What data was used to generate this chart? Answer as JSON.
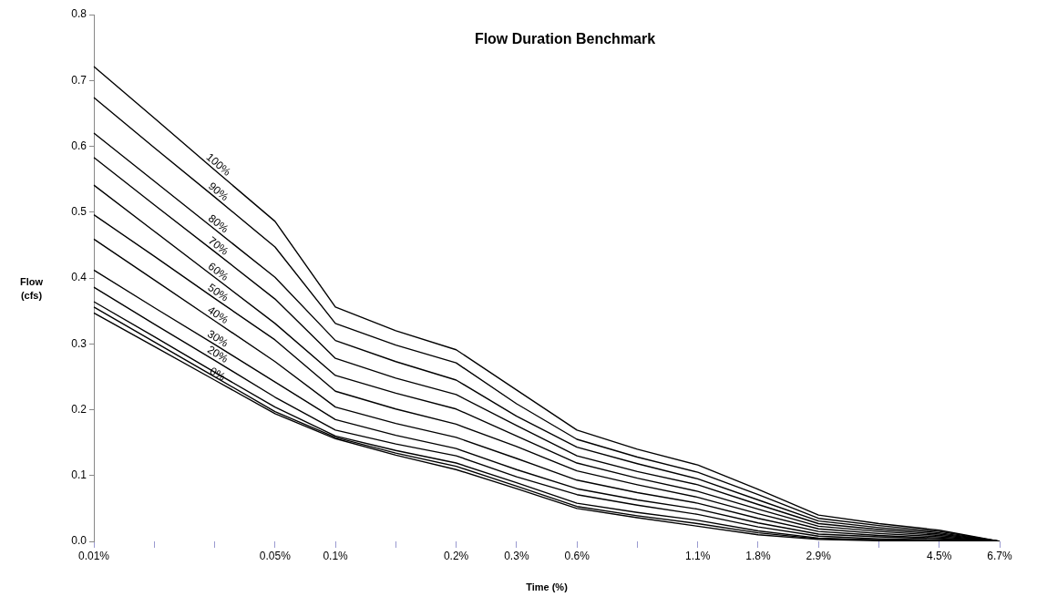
{
  "chart_data": {
    "type": "line",
    "title": "Flow Duration Benchmark",
    "xlabel": "Time (%)",
    "ylabel": "Flow\n(cfs)",
    "categories": [
      "0.01%",
      null,
      null,
      "0.05%",
      "0.1%",
      null,
      "0.2%",
      "0.3%",
      "0.6%",
      null,
      "1.1%",
      "1.8%",
      "2.9%",
      null,
      "4.5%",
      "6.7%"
    ],
    "ylim": [
      0,
      0.8
    ],
    "yticks": [
      {
        "value": 0,
        "label": "0.0"
      },
      0.1,
      0.2,
      0.3,
      0.4,
      0.5,
      0.6,
      0.7,
      0.8
    ],
    "grid": false,
    "legend": false,
    "marker": "none",
    "line_style": "solid",
    "series": [
      {
        "name": "100%",
        "color": "#000000",
        "values": [
          0.721,
          0.643,
          0.564,
          0.486,
          0.356,
          0.32,
          0.291,
          0.23,
          0.169,
          0.14,
          0.116,
          0.079,
          0.04,
          0.027,
          0.017,
          0
        ]
      },
      {
        "name": "90%",
        "color": "#000000",
        "values": [
          0.674,
          0.598,
          0.523,
          0.447,
          0.331,
          0.298,
          0.271,
          0.209,
          0.155,
          0.128,
          0.105,
          0.071,
          0.035,
          0.024,
          0.015,
          0
        ]
      },
      {
        "name": "80%",
        "color": "#000000",
        "values": [
          0.62,
          0.547,
          0.474,
          0.401,
          0.305,
          0.273,
          0.245,
          0.19,
          0.143,
          0.118,
          0.095,
          0.063,
          0.031,
          0.021,
          0.013,
          0
        ]
      },
      {
        "name": "70%",
        "color": "#000000",
        "values": [
          0.583,
          0.511,
          0.44,
          0.368,
          0.278,
          0.248,
          0.223,
          0.176,
          0.13,
          0.106,
          0.086,
          0.056,
          0.027,
          0.018,
          0.011,
          0
        ]
      },
      {
        "name": "60%",
        "color": "#000000",
        "values": [
          0.541,
          0.471,
          0.401,
          0.331,
          0.252,
          0.225,
          0.201,
          0.16,
          0.119,
          0.096,
          0.076,
          0.049,
          0.023,
          0.015,
          0.009,
          0
        ]
      },
      {
        "name": "50%",
        "color": "#000000",
        "values": [
          0.496,
          0.433,
          0.369,
          0.306,
          0.228,
          0.201,
          0.178,
          0.144,
          0.107,
          0.086,
          0.067,
          0.042,
          0.019,
          0.012,
          0.007,
          0
        ]
      },
      {
        "name": "40%",
        "color": "#000000",
        "values": [
          0.459,
          0.397,
          0.335,
          0.273,
          0.204,
          0.179,
          0.158,
          0.126,
          0.093,
          0.074,
          0.058,
          0.035,
          0.015,
          0.009,
          0.005,
          0
        ]
      },
      {
        "name": "30%",
        "color": "#000000",
        "values": [
          0.412,
          0.355,
          0.299,
          0.242,
          0.185,
          0.161,
          0.141,
          0.109,
          0.08,
          0.063,
          0.049,
          0.028,
          0.011,
          0.007,
          0.004,
          0
        ]
      },
      {
        "name": "20%",
        "color": "#000000",
        "values": [
          0.386,
          0.33,
          0.275,
          0.219,
          0.169,
          0.148,
          0.13,
          0.098,
          0.071,
          0.055,
          0.041,
          0.022,
          0.008,
          0.004,
          0.002,
          0
        ]
      },
      {
        "color": "#000000",
        "values": [
          0.364,
          0.311,
          0.257,
          0.204,
          0.16,
          0.138,
          0.119,
          0.089,
          0.058,
          0.044,
          0.032,
          0.016,
          0.005,
          0.002,
          0.001,
          0
        ]
      },
      {
        "color": "#000000",
        "values": [
          0.356,
          0.303,
          0.25,
          0.197,
          0.158,
          0.134,
          0.114,
          0.084,
          0.053,
          0.039,
          0.027,
          0.013,
          0.004,
          0.002,
          0.001,
          0
        ]
      },
      {
        "name": "0%",
        "color": "#000000",
        "values": [
          0.347,
          0.296,
          0.245,
          0.194,
          0.156,
          0.131,
          0.109,
          0.08,
          0.05,
          0.036,
          0.023,
          0.01,
          0.003,
          0.001,
          0,
          0
        ]
      }
    ]
  }
}
